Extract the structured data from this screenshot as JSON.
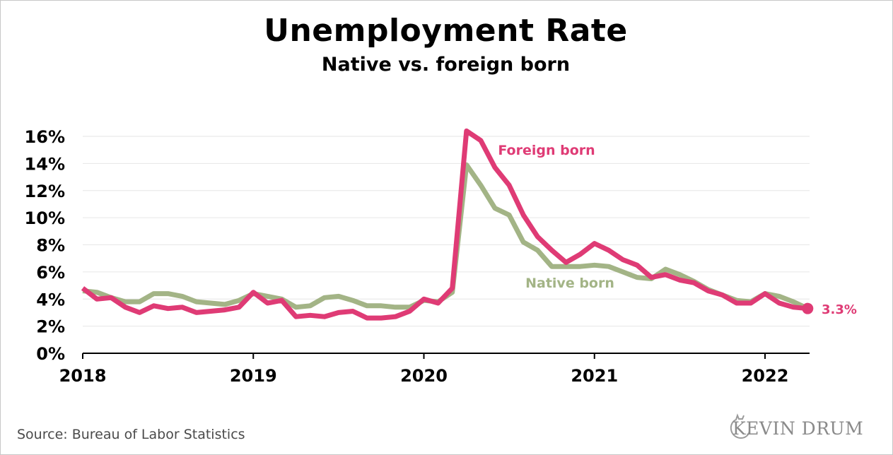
{
  "title": "Unemployment Rate",
  "subtitle": "Native vs. foreign born",
  "source": "Source: Bureau of Labor Statistics",
  "brand": "KEVIN DRUM",
  "colors": {
    "native": "#a3b486",
    "foreign": "#df3b75",
    "grid": "#e6e6e6",
    "axis": "#000000"
  },
  "chart_data": {
    "type": "line",
    "x_axis": {
      "ticks": [
        "2018",
        "2019",
        "2020",
        "2021",
        "2022"
      ],
      "start": "2018-01",
      "end": "2022-04"
    },
    "y_axis": {
      "ticks": [
        "0%",
        "2%",
        "4%",
        "6%",
        "8%",
        "10%",
        "12%",
        "14%",
        "16%"
      ],
      "ylim": [
        0,
        16
      ]
    },
    "grid": true,
    "series": [
      {
        "name": "Native born",
        "color": "#a3b486",
        "x": [
          "2018-01",
          "2018-02",
          "2018-03",
          "2018-04",
          "2018-05",
          "2018-06",
          "2018-07",
          "2018-08",
          "2018-09",
          "2018-10",
          "2018-11",
          "2018-12",
          "2019-01",
          "2019-02",
          "2019-03",
          "2019-04",
          "2019-05",
          "2019-06",
          "2019-07",
          "2019-08",
          "2019-09",
          "2019-10",
          "2019-11",
          "2019-12",
          "2020-01",
          "2020-02",
          "2020-03",
          "2020-04",
          "2020-05",
          "2020-06",
          "2020-07",
          "2020-08",
          "2020-09",
          "2020-10",
          "2020-11",
          "2020-12",
          "2021-01",
          "2021-02",
          "2021-03",
          "2021-04",
          "2021-05",
          "2021-06",
          "2021-07",
          "2021-08",
          "2021-09",
          "2021-10",
          "2021-11",
          "2021-12",
          "2022-01",
          "2022-02",
          "2022-03",
          "2022-04"
        ],
        "values": [
          4.6,
          4.5,
          4.1,
          3.8,
          3.8,
          4.4,
          4.4,
          4.2,
          3.8,
          3.7,
          3.6,
          3.9,
          4.4,
          4.2,
          4.0,
          3.4,
          3.5,
          4.1,
          4.2,
          3.9,
          3.5,
          3.5,
          3.4,
          3.4,
          3.9,
          3.8,
          4.5,
          13.9,
          12.4,
          10.7,
          10.2,
          8.2,
          7.6,
          6.4,
          6.4,
          6.4,
          6.5,
          6.4,
          6.0,
          5.6,
          5.5,
          6.2,
          5.8,
          5.3,
          4.7,
          4.3,
          3.9,
          3.8,
          4.4,
          4.2,
          3.8,
          3.3
        ]
      },
      {
        "name": "Foreign born",
        "color": "#df3b75",
        "x": [
          "2018-01",
          "2018-02",
          "2018-03",
          "2018-04",
          "2018-05",
          "2018-06",
          "2018-07",
          "2018-08",
          "2018-09",
          "2018-10",
          "2018-11",
          "2018-12",
          "2019-01",
          "2019-02",
          "2019-03",
          "2019-04",
          "2019-05",
          "2019-06",
          "2019-07",
          "2019-08",
          "2019-09",
          "2019-10",
          "2019-11",
          "2019-12",
          "2020-01",
          "2020-02",
          "2020-03",
          "2020-04",
          "2020-05",
          "2020-06",
          "2020-07",
          "2020-08",
          "2020-09",
          "2020-10",
          "2020-11",
          "2020-12",
          "2021-01",
          "2021-02",
          "2021-03",
          "2021-04",
          "2021-05",
          "2021-06",
          "2021-07",
          "2021-08",
          "2021-09",
          "2021-10",
          "2021-11",
          "2021-12",
          "2022-01",
          "2022-02",
          "2022-03",
          "2022-04"
        ],
        "values": [
          4.8,
          4.0,
          4.1,
          3.4,
          3.0,
          3.5,
          3.3,
          3.4,
          3.0,
          3.1,
          3.2,
          3.4,
          4.5,
          3.7,
          3.9,
          2.7,
          2.8,
          2.7,
          3.0,
          3.1,
          2.6,
          2.6,
          2.7,
          3.1,
          4.0,
          3.7,
          4.8,
          16.4,
          15.7,
          13.7,
          12.4,
          10.2,
          8.6,
          7.6,
          6.7,
          7.3,
          8.1,
          7.6,
          6.9,
          6.5,
          5.6,
          5.8,
          5.4,
          5.2,
          4.6,
          4.3,
          3.7,
          3.7,
          4.4,
          3.7,
          3.4,
          3.3
        ]
      }
    ],
    "annotations": {
      "foreign_label": "Foreign born",
      "native_label": "Native born",
      "end_value": "3.3%"
    }
  }
}
